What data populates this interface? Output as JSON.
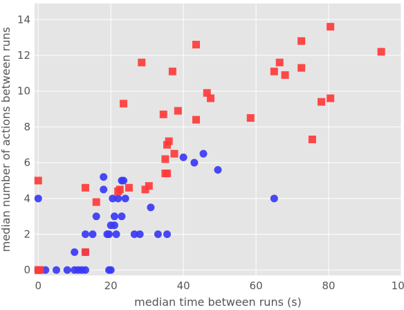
{
  "chart_data": {
    "type": "scatter",
    "title": "",
    "xlabel": "median time between runs (s)",
    "ylabel": "median number of actions between runs",
    "xlim": [
      -1,
      100
    ],
    "ylim": [
      -0.3,
      14.9
    ],
    "x_ticks": [
      0,
      20,
      40,
      60,
      80,
      100
    ],
    "y_ticks": [
      0,
      2,
      4,
      6,
      8,
      10,
      12,
      14
    ],
    "grid": true,
    "background": "#e5e5e5",
    "grid_color": "#ffffff",
    "series": [
      {
        "marker": "circle",
        "color": "#3a3af5",
        "points": [
          [
            0,
            4
          ],
          [
            0,
            0
          ],
          [
            2,
            0
          ],
          [
            5,
            0
          ],
          [
            8,
            0
          ],
          [
            10,
            0
          ],
          [
            11,
            0
          ],
          [
            12,
            0
          ],
          [
            13,
            0
          ],
          [
            19.5,
            0
          ],
          [
            20,
            0
          ],
          [
            10,
            1
          ],
          [
            13,
            1
          ],
          [
            13,
            2
          ],
          [
            15,
            2
          ],
          [
            16,
            3
          ],
          [
            18,
            5.2
          ],
          [
            18,
            4.5
          ],
          [
            19,
            2
          ],
          [
            19.5,
            2
          ],
          [
            20,
            2.5
          ],
          [
            21,
            2.5
          ],
          [
            21,
            3
          ],
          [
            21.5,
            2
          ],
          [
            22,
            4
          ],
          [
            20.5,
            4
          ],
          [
            23,
            5
          ],
          [
            23.5,
            5
          ],
          [
            23,
            3
          ],
          [
            24,
            4
          ],
          [
            26.5,
            2
          ],
          [
            28,
            2
          ],
          [
            31,
            3.5
          ],
          [
            33,
            2
          ],
          [
            35.5,
            2
          ],
          [
            40,
            6.3
          ],
          [
            43,
            6
          ],
          [
            45.5,
            6.5
          ],
          [
            49.5,
            5.6
          ],
          [
            65,
            4
          ]
        ]
      },
      {
        "marker": "square",
        "color": "#ff3b3b",
        "points": [
          [
            0,
            5
          ],
          [
            0,
            0
          ],
          [
            0.5,
            0
          ],
          [
            13,
            4.6
          ],
          [
            13,
            1
          ],
          [
            16,
            3.8
          ],
          [
            22,
            4.4
          ],
          [
            22.5,
            4.5
          ],
          [
            23.5,
            9.3
          ],
          [
            25,
            4.6
          ],
          [
            28.5,
            11.6
          ],
          [
            29.5,
            4.5
          ],
          [
            30.5,
            4.7
          ],
          [
            34.5,
            8.7
          ],
          [
            35,
            5.4
          ],
          [
            35,
            6.2
          ],
          [
            35.5,
            5.4
          ],
          [
            35.5,
            7.0
          ],
          [
            36,
            7.2
          ],
          [
            37,
            11.1
          ],
          [
            37.5,
            6.5
          ],
          [
            38.5,
            8.9
          ],
          [
            43.5,
            12.6
          ],
          [
            43.5,
            8.4
          ],
          [
            46.5,
            9.9
          ],
          [
            47.5,
            9.6
          ],
          [
            58.5,
            8.5
          ],
          [
            65,
            11.1
          ],
          [
            66.5,
            11.6
          ],
          [
            68,
            10.9
          ],
          [
            72.5,
            12.8
          ],
          [
            72.5,
            11.3
          ],
          [
            75.5,
            7.3
          ],
          [
            78,
            9.4
          ],
          [
            80.5,
            9.6
          ],
          [
            80.5,
            13.6
          ],
          [
            94.5,
            12.2
          ]
        ]
      }
    ]
  }
}
